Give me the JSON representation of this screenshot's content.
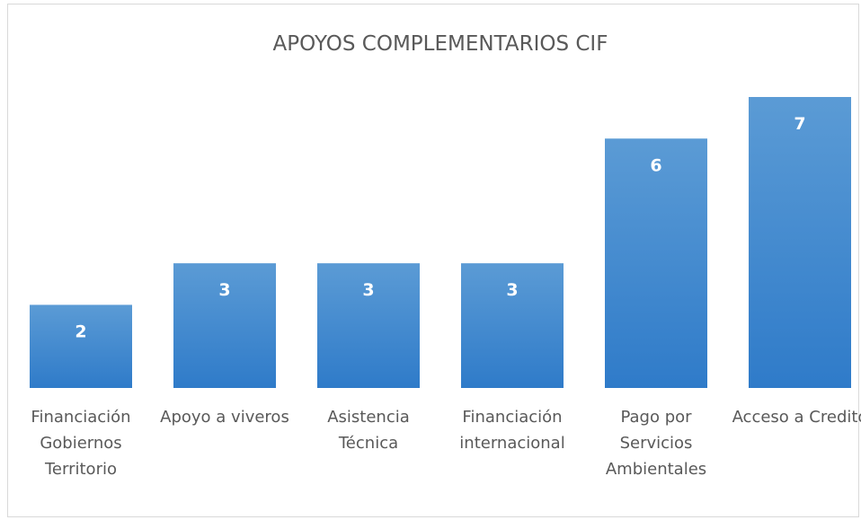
{
  "chart_data": {
    "type": "bar",
    "title": "APOYOS COMPLEMENTARIOS CIF",
    "categories": [
      "Financiación Gobiernos Territorio",
      "Apoyo a viveros",
      "Asistencia Técnica",
      "Financiación internacional",
      "Pago por Servicios Ambientales",
      "Acceso a Credito"
    ],
    "values": [
      2,
      3,
      3,
      3,
      6,
      7
    ],
    "color": "#4a8fd3"
  }
}
